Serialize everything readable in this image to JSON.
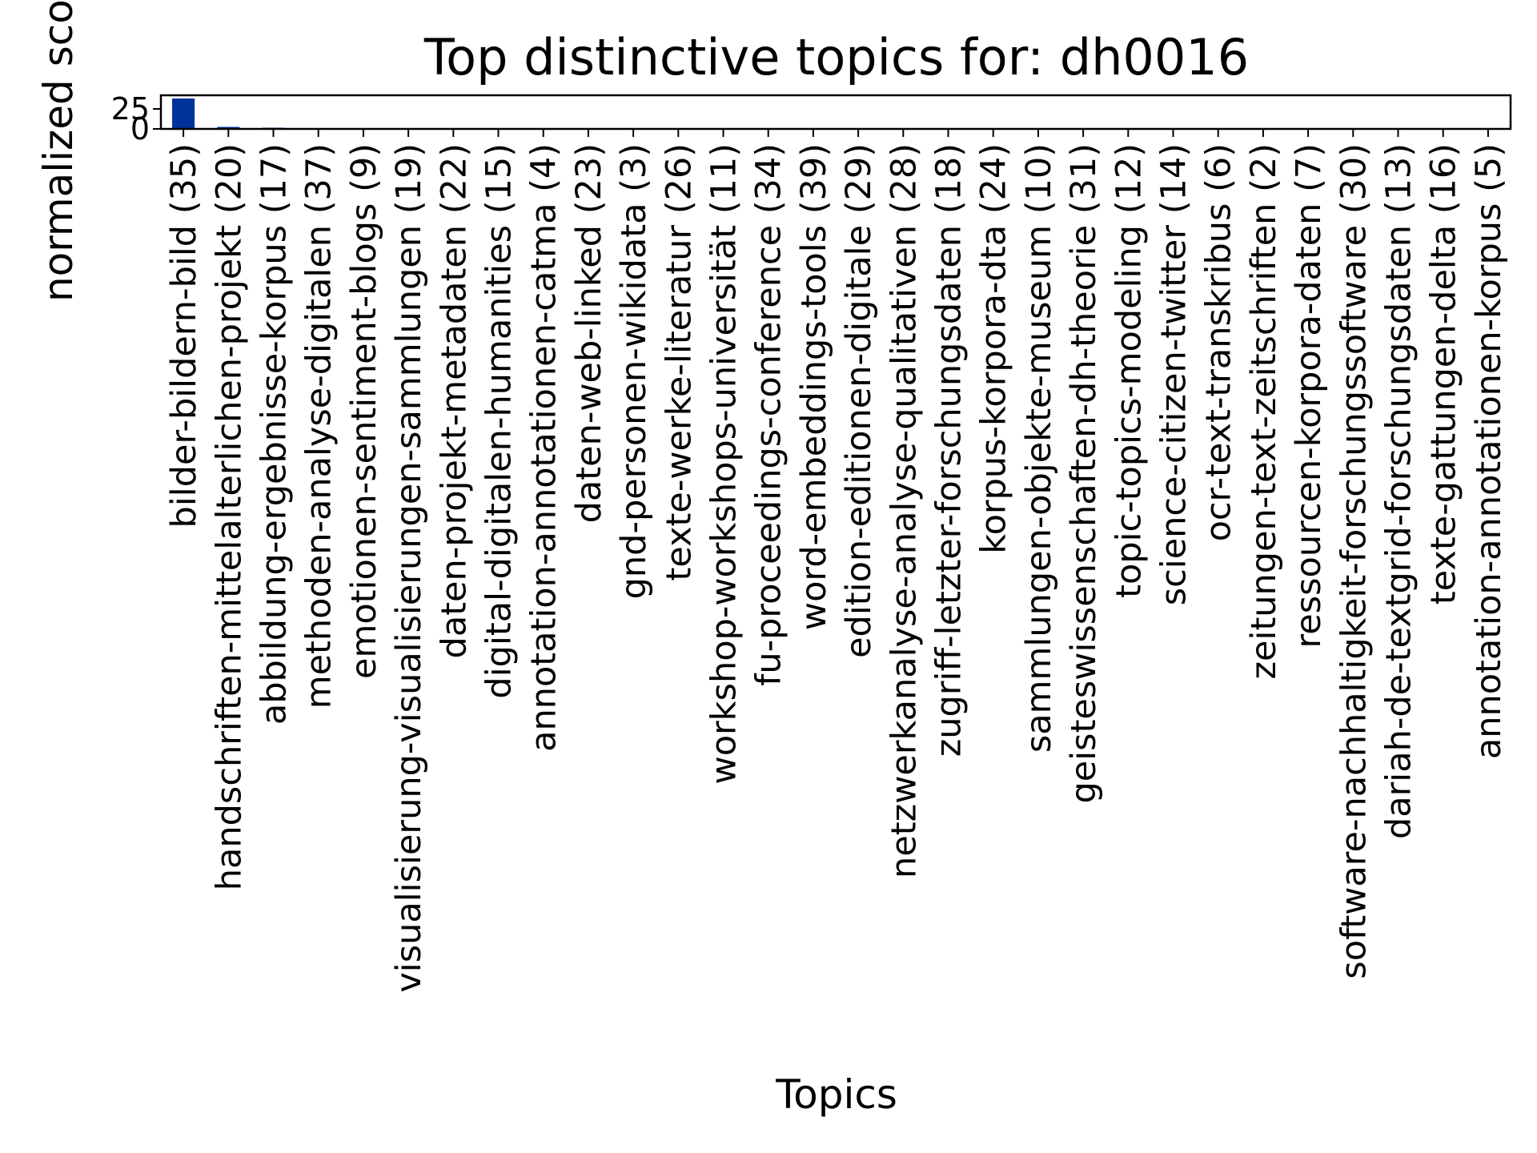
{
  "chart_data": {
    "type": "bar",
    "title": "Top distinctive topics for: dh0016",
    "xlabel": "Topics",
    "ylabel": "normalized score",
    "ylim": [
      0,
      42
    ],
    "yticks": [
      0,
      25
    ],
    "grid": false,
    "legend": "none",
    "bar_color": "#003399",
    "categories": [
      "bilder-bildern-bild (35)",
      "handschriften-mittelalterlichen-projekt (20)",
      "abbildung-ergebnisse-korpus (17)",
      "methoden-analyse-digitalen (37)",
      "emotionen-sentiment-blogs (9)",
      "visualisierung-visualisierungen-sammlungen (19)",
      "daten-projekt-metadaten (22)",
      "digital-digitalen-humanities (15)",
      "annotation-annotationen-catma (4)",
      "daten-web-linked (23)",
      "gnd-personen-wikidata (3)",
      "texte-werke-literatur (26)",
      "workshop-workshops-universität (11)",
      "fu-proceedings-conference (34)",
      "word-embeddings-tools (39)",
      "edition-editionen-digitale (29)",
      "netzwerkanalyse-analyse-qualitativen (28)",
      "zugriff-letzter-forschungsdaten (18)",
      "korpus-korpora-dta (24)",
      "sammlungen-objekte-museum (10)",
      "geisteswissenschaften-dh-theorie (31)",
      "topic-topics-modeling (12)",
      "science-citizen-twitter (14)",
      "ocr-text-transkribus (6)",
      "zeitungen-text-zeitschriften (2)",
      "ressourcen-korpora-daten (7)",
      "software-nachhaltigkeit-forschungssoftware (30)",
      "dariah-de-textgrid-forschungsdaten (13)",
      "texte-gattungen-delta (16)",
      "annotation-annotationen-korpus (5)"
    ],
    "values": [
      38,
      2.5,
      1.5,
      0.3,
      0.2,
      0.2,
      0.15,
      0.1,
      0.1,
      0.1,
      0.1,
      0.1,
      0.1,
      0.1,
      0.1,
      0.1,
      0.1,
      0.1,
      0.1,
      0.1,
      0.1,
      0.1,
      0.1,
      0.1,
      0.1,
      0.1,
      0.1,
      0.1,
      0.1,
      0.1
    ]
  }
}
